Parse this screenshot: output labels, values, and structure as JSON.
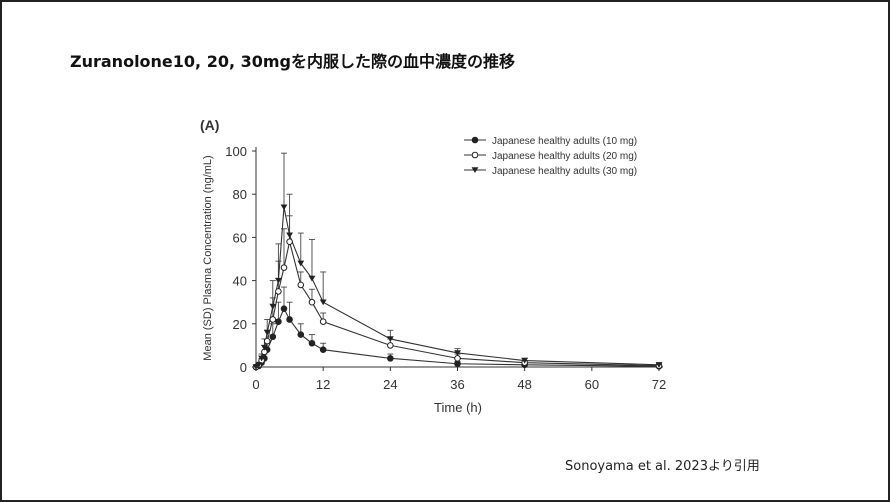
{
  "slide": {
    "title": "Zuranolone10, 20, 30mgを内服した際の血中濃度の推移",
    "citation": "Sonoyama  et al. 2023より引用"
  },
  "chart_data": {
    "type": "line",
    "panel_label": "(A)",
    "xlabel": "Time (h)",
    "ylabel": "Mean (SD) Plasma Concentration (ng/mL)",
    "xlim": [
      0,
      72
    ],
    "ylim": [
      0,
      100
    ],
    "xticks": [
      0,
      12,
      24,
      36,
      48,
      60,
      72
    ],
    "yticks": [
      0,
      20,
      40,
      60,
      80,
      100
    ],
    "grid": false,
    "legend_position": "top-right",
    "series": [
      {
        "name": "Japanese healthy adults (10 mg)",
        "marker": "filled-circle",
        "x": [
          0,
          0.5,
          1,
          1.5,
          2,
          3,
          4,
          5,
          6,
          8,
          10,
          12,
          24,
          36,
          48,
          72
        ],
        "y": [
          0,
          0.5,
          2,
          4,
          8,
          14,
          21,
          27,
          22,
          15,
          11,
          8,
          4,
          1.5,
          1,
          0.3
        ],
        "sd": [
          0,
          0.5,
          1,
          2,
          3,
          6,
          9,
          10,
          8,
          5,
          4,
          3,
          2,
          1,
          0.5,
          0.2
        ]
      },
      {
        "name": "Japanese healthy adults (20 mg)",
        "marker": "open-circle",
        "x": [
          0,
          0.5,
          1,
          1.5,
          2,
          3,
          4,
          5,
          6,
          8,
          10,
          12,
          24,
          36,
          48,
          72
        ],
        "y": [
          0,
          1,
          3,
          7,
          12,
          22,
          35,
          46,
          58,
          38,
          30,
          21,
          10,
          4,
          2,
          0.6
        ],
        "sd": [
          0,
          0.5,
          1,
          3,
          5,
          10,
          14,
          18,
          12,
          6,
          6,
          4,
          3,
          2,
          1,
          0.4
        ]
      },
      {
        "name": "Japanese healthy adults (30 mg)",
        "marker": "filled-triangle-down",
        "x": [
          0,
          0.5,
          1,
          1.5,
          2,
          3,
          4,
          5,
          6,
          8,
          10,
          12,
          24,
          36,
          48,
          72
        ],
        "y": [
          0,
          1,
          4,
          9,
          16,
          28,
          40,
          74,
          61,
          48,
          41,
          30,
          13,
          6.5,
          3,
          1
        ],
        "sd": [
          0,
          0.5,
          2,
          4,
          6,
          12,
          17,
          25,
          19,
          14,
          18,
          14,
          4,
          2,
          1,
          0.5
        ]
      }
    ]
  }
}
